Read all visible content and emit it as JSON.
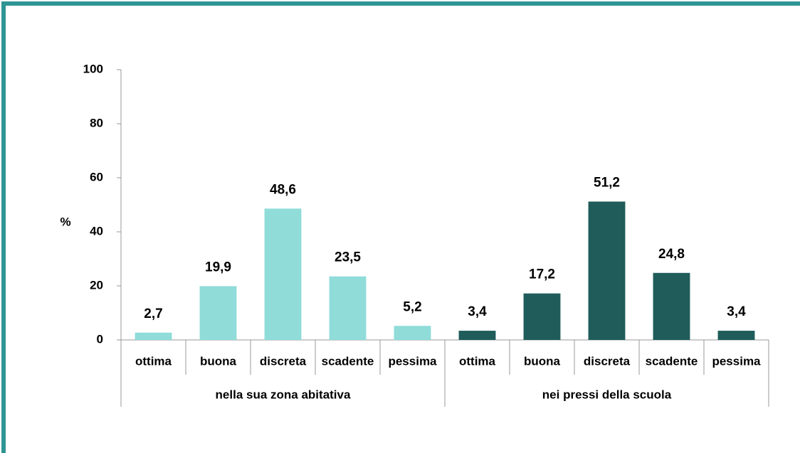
{
  "chart_data": {
    "type": "bar",
    "categories": [
      "ottima",
      "buona",
      "discreta",
      "scadente",
      "pessima"
    ],
    "series": [
      {
        "name": "nella sua zona abitativa",
        "color": "#8fdcd9",
        "values": [
          2.7,
          19.9,
          48.6,
          23.5,
          5.2
        ],
        "value_labels": [
          "2,7",
          "19,9",
          "48,6",
          "23,5",
          "5,2"
        ]
      },
      {
        "name": "nei pressi della  scuola",
        "color": "#1f5c5a",
        "values": [
          3.4,
          17.2,
          51.2,
          24.8,
          3.4
        ],
        "value_labels": [
          "3,4",
          "17,2",
          "51,2",
          "24,8",
          "3,4"
        ]
      }
    ],
    "ylabel": "%",
    "ylim": [
      0,
      100
    ],
    "yticks": [
      0,
      20,
      40,
      60,
      80,
      100
    ]
  }
}
